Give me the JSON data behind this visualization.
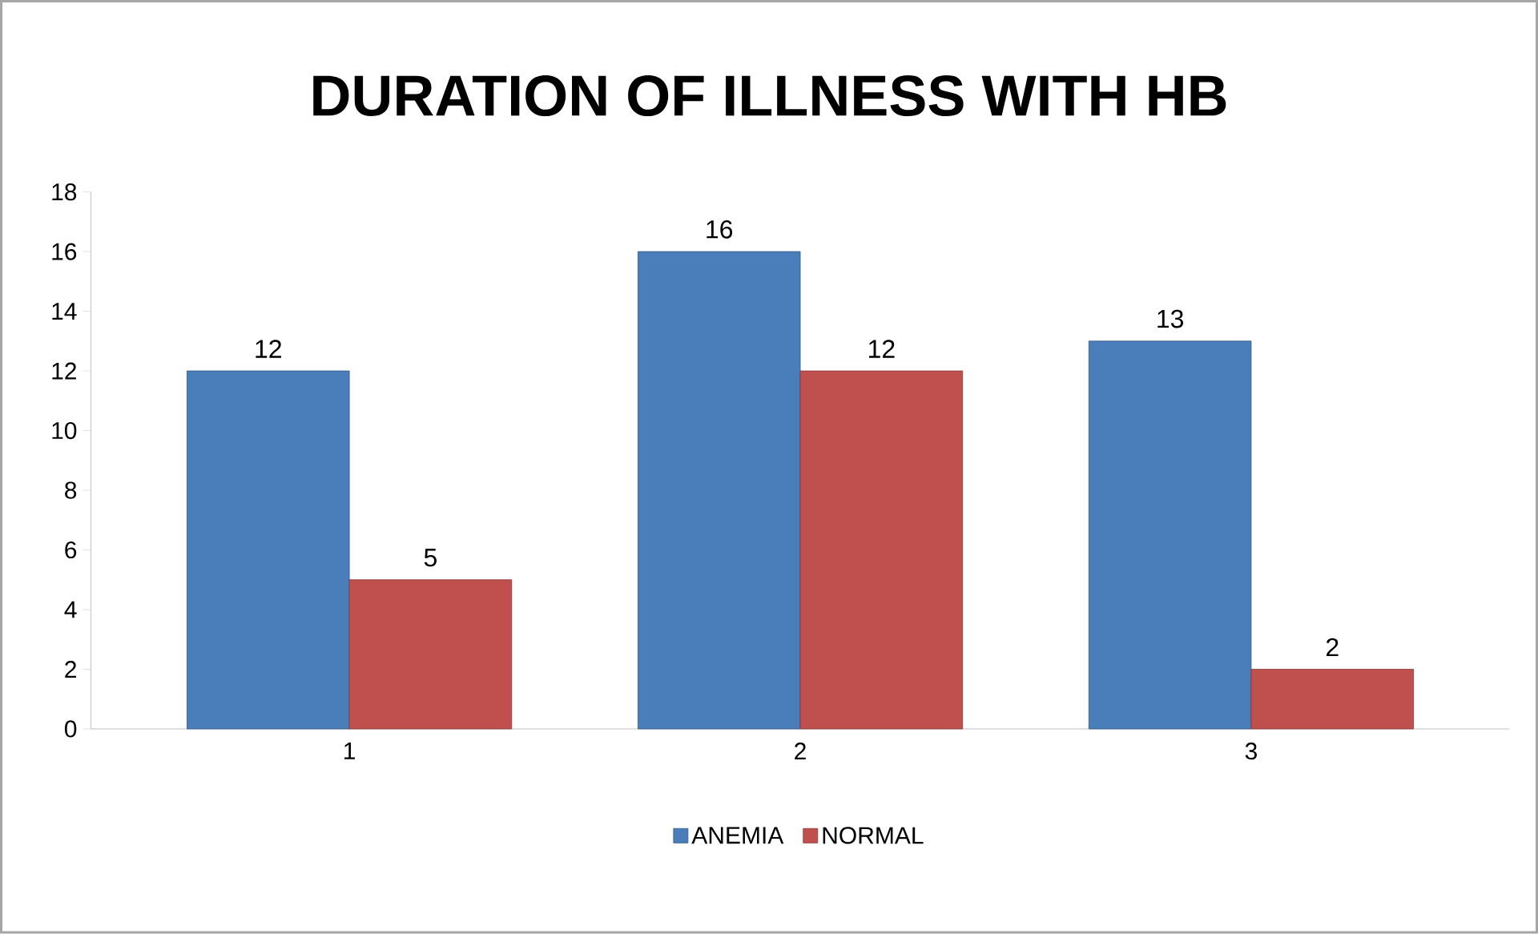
{
  "chart_data": {
    "type": "bar",
    "title": "DURATION OF ILLNESS WITH HB",
    "categories": [
      "1",
      "2",
      "3"
    ],
    "series": [
      {
        "name": "ANEMIA",
        "color": "#4a7ebb",
        "values": [
          12,
          16,
          13
        ]
      },
      {
        "name": "NORMAL",
        "color": "#c0504d",
        "values": [
          5,
          12,
          2
        ]
      }
    ],
    "ylim": [
      0,
      18
    ],
    "yticks": [
      0,
      2,
      4,
      6,
      8,
      10,
      12,
      14,
      16,
      18
    ],
    "grid": false,
    "legend": "bottom",
    "data_labels": true
  }
}
